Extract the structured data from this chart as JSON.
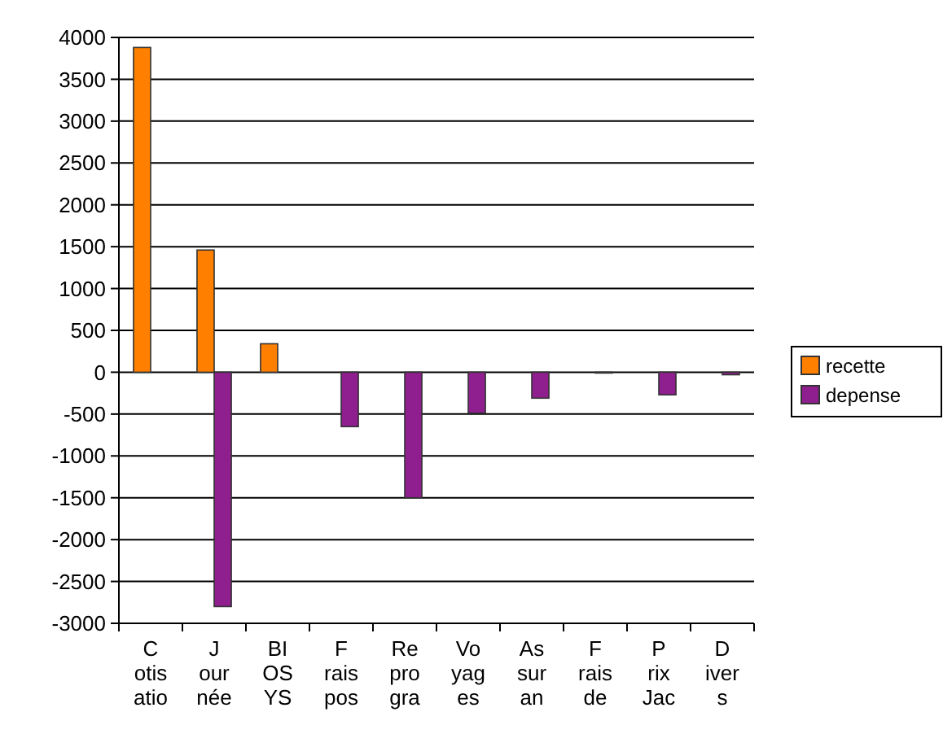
{
  "chart_data": {
    "type": "bar",
    "categories": [
      "C\notis\natio",
      "J\nour\nnée",
      "BI\nOS\nYS",
      "F\nrais\npos",
      "Re\npro\ngra",
      "Vo\nyag\nes",
      "As\nsur\nan",
      "F\nrais\nde",
      "P\nrix\nJac",
      "D\niver\ns"
    ],
    "series": [
      {
        "name": "recette",
        "color": "#ff8000",
        "values": [
          3880,
          1460,
          340,
          null,
          null,
          null,
          null,
          null,
          null,
          null
        ]
      },
      {
        "name": "depense",
        "color": "#8f1e8f",
        "values": [
          null,
          -2800,
          null,
          -650,
          -1500,
          -490,
          -310,
          -10,
          -270,
          -30
        ]
      }
    ],
    "ylim": [
      -3000,
      4000
    ],
    "yticks": [
      -3000,
      -2500,
      -2000,
      -1500,
      -1000,
      -500,
      0,
      500,
      1000,
      1500,
      2000,
      2500,
      3000,
      3500,
      4000
    ],
    "grid": "y",
    "legend": "right"
  }
}
